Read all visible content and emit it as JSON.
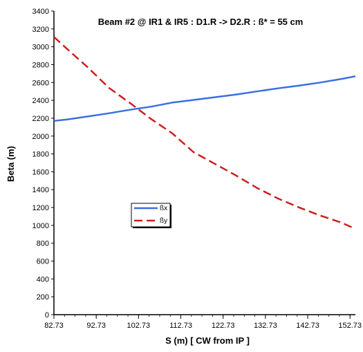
{
  "chart_data": {
    "type": "line",
    "title": "Beam #2 @ IR1 & IR5 : D1.R -> D2.R : ß* = 55 cm",
    "xlabel": "S (m)  [ CW from IP ]",
    "ylabel": "Beta   (m)",
    "xlim": [
      82.73,
      154.0
    ],
    "ylim": [
      0,
      3400
    ],
    "xticks": [
      "82.73",
      "92.73",
      "102.73",
      "112.73",
      "122.73",
      "132.73",
      "142.73",
      "152.73"
    ],
    "xtick_values": [
      82.73,
      92.73,
      102.73,
      112.73,
      122.73,
      132.73,
      142.73,
      152.73
    ],
    "yticks": [
      0,
      200,
      400,
      600,
      800,
      1000,
      1200,
      1400,
      1600,
      1800,
      2000,
      2200,
      2400,
      2600,
      2800,
      3000,
      3200,
      3400
    ],
    "grid": false,
    "legend_position": "center-left",
    "series": [
      {
        "name": "ßx",
        "color": "#3a6fe0",
        "dash": "solid",
        "x": [
          82.73,
          85.73,
          90.73,
          95.73,
          100.73,
          105.73,
          110.73,
          115.73,
          120.73,
          125.73,
          130.73,
          135.73,
          140.73,
          145.73,
          150.73,
          154.0
        ],
        "y": [
          2170,
          2185,
          2220,
          2255,
          2295,
          2330,
          2375,
          2405,
          2435,
          2465,
          2500,
          2535,
          2565,
          2600,
          2640,
          2670
        ]
      },
      {
        "name": "ßy",
        "color": "#cc1f1f",
        "dash": "dashed",
        "x": [
          82.73,
          85.73,
          90.73,
          95.73,
          100.73,
          105.73,
          110.73,
          115.73,
          120.73,
          125.73,
          130.73,
          135.73,
          140.73,
          145.73,
          150.73,
          154.0
        ],
        "y": [
          3110,
          2980,
          2770,
          2540,
          2370,
          2190,
          2030,
          1820,
          1690,
          1560,
          1420,
          1300,
          1200,
          1110,
          1030,
          960
        ]
      }
    ]
  }
}
